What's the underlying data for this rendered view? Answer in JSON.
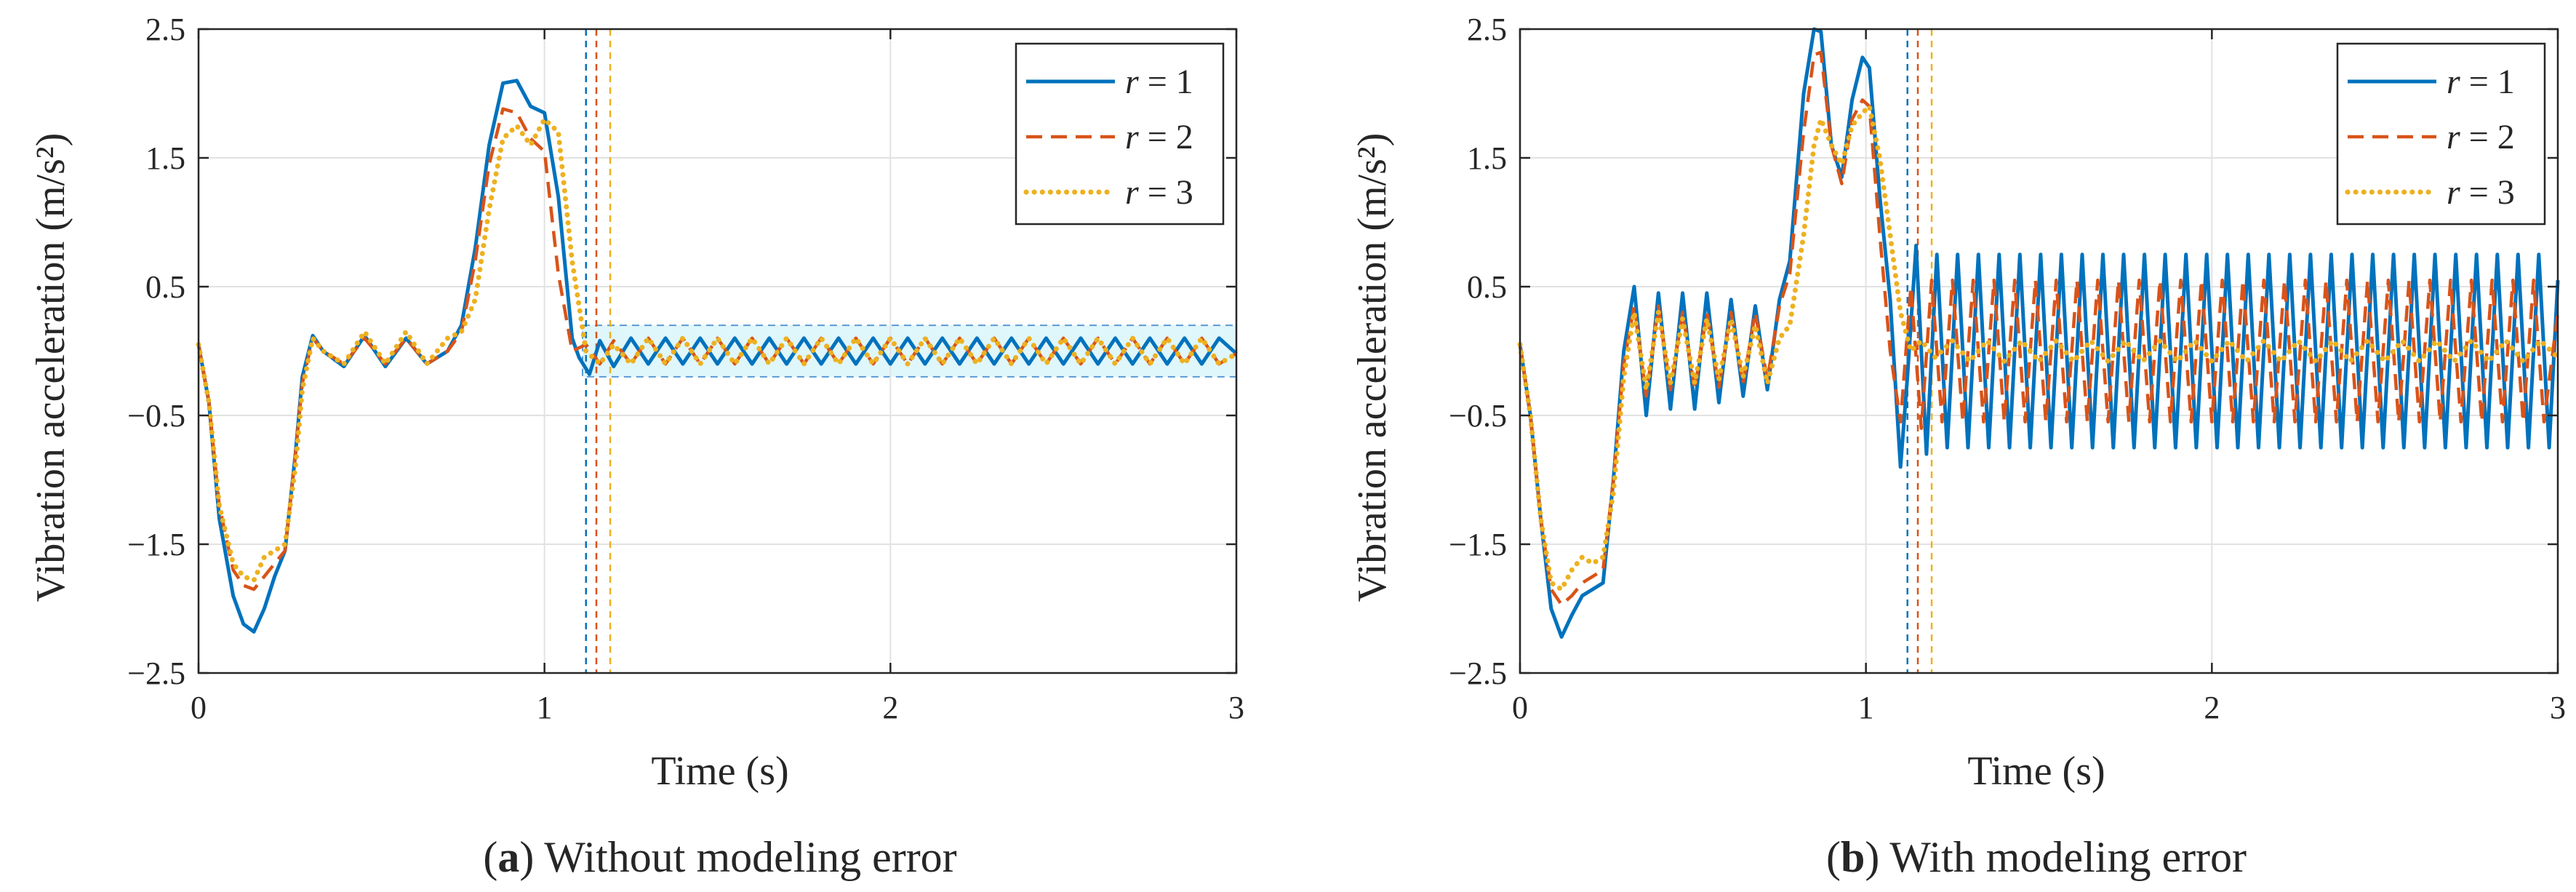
{
  "figure": {
    "colors": {
      "r1": "#0072BD",
      "r2": "#D95319",
      "r3": "#EDB120",
      "band_fill": "#dff6fb",
      "band_edge": "#5b9bd5",
      "grid": "#e2e2e2",
      "axis": "#262626"
    },
    "legend_labels": [
      "r = 1",
      "r = 2",
      "r = 3"
    ]
  },
  "chart_data": [
    {
      "type": "line",
      "panel": "a",
      "caption_letter": "a",
      "caption_text": " Without modeling error",
      "xlabel": "Time (s)",
      "ylabel": "Vibration acceleration (m/s²)",
      "xlim": [
        0,
        3
      ],
      "ylim": [
        -2.5,
        2.5
      ],
      "xticks": [
        "0",
        "1",
        "2",
        "3"
      ],
      "yticks": [
        "2.5",
        "1.5",
        "0.5",
        "−0.5",
        "−1.5",
        "−2.5"
      ],
      "grid": true,
      "legend": "top-right",
      "settling_band": {
        "x_start": 1.11,
        "x_end": 3.0,
        "y_low": -0.2,
        "y_high": 0.2
      },
      "settling_times": [
        1.12,
        1.15,
        1.19
      ],
      "series": [
        {
          "name": "r = 1",
          "color": "#0072BD",
          "dash": "solid",
          "x": [
            0,
            0.03,
            0.06,
            0.1,
            0.13,
            0.16,
            0.19,
            0.22,
            0.25,
            0.28,
            0.3,
            0.33,
            0.36,
            0.42,
            0.48,
            0.54,
            0.6,
            0.66,
            0.72,
            0.76,
            0.8,
            0.84,
            0.88,
            0.92,
            0.96,
            1.0,
            1.04,
            1.08,
            1.1,
            1.13,
            1.16,
            1.2,
            1.25,
            1.3,
            1.35,
            1.4,
            1.45,
            1.5,
            1.55,
            1.6,
            1.65,
            1.7,
            1.75,
            1.8,
            1.85,
            1.9,
            1.95,
            2.0,
            2.05,
            2.1,
            2.15,
            2.2,
            2.25,
            2.3,
            2.35,
            2.4,
            2.45,
            2.5,
            2.55,
            2.6,
            2.65,
            2.7,
            2.75,
            2.8,
            2.85,
            2.9,
            2.95,
            3.0
          ],
          "y": [
            0.05,
            -0.4,
            -1.3,
            -1.9,
            -2.12,
            -2.18,
            -2.0,
            -1.75,
            -1.55,
            -0.8,
            -0.2,
            0.12,
            0.0,
            -0.12,
            0.12,
            -0.12,
            0.1,
            -0.1,
            0.0,
            0.2,
            0.8,
            1.6,
            2.08,
            2.1,
            1.9,
            1.85,
            1.2,
            0.1,
            -0.05,
            -0.18,
            0.08,
            -0.12,
            0.1,
            -0.1,
            0.1,
            -0.1,
            0.1,
            -0.1,
            0.1,
            -0.1,
            0.1,
            -0.1,
            0.1,
            -0.1,
            0.1,
            -0.1,
            0.1,
            -0.1,
            0.1,
            -0.1,
            0.1,
            -0.1,
            0.1,
            -0.1,
            0.1,
            -0.1,
            0.1,
            -0.1,
            0.1,
            -0.1,
            0.1,
            -0.1,
            0.1,
            -0.1,
            0.1,
            -0.1,
            0.1,
            -0.02
          ]
        },
        {
          "name": "r = 2",
          "color": "#D95319",
          "dash": "dashed",
          "x": [
            0,
            0.03,
            0.06,
            0.1,
            0.13,
            0.16,
            0.19,
            0.22,
            0.25,
            0.28,
            0.3,
            0.33,
            0.36,
            0.42,
            0.48,
            0.54,
            0.6,
            0.66,
            0.72,
            0.76,
            0.8,
            0.84,
            0.88,
            0.92,
            0.96,
            1.0,
            1.04,
            1.08,
            1.12,
            1.16,
            1.2,
            1.25,
            1.3,
            1.35,
            1.4,
            1.45,
            1.5,
            1.55,
            1.6,
            1.65,
            1.7,
            1.75,
            1.8,
            1.85,
            1.9,
            1.95,
            2.0,
            2.05,
            2.1,
            2.15,
            2.2,
            2.25,
            2.3,
            2.35,
            2.4,
            2.45,
            2.5,
            2.55,
            2.6,
            2.65,
            2.7,
            2.75,
            2.8,
            2.85,
            2.9,
            2.95,
            3.0
          ],
          "y": [
            0.05,
            -0.4,
            -1.2,
            -1.7,
            -1.82,
            -1.85,
            -1.75,
            -1.65,
            -1.55,
            -0.8,
            -0.25,
            0.1,
            0.0,
            -0.1,
            0.1,
            -0.1,
            0.1,
            -0.1,
            0.0,
            0.15,
            0.7,
            1.45,
            1.88,
            1.85,
            1.65,
            1.55,
            0.6,
            0.0,
            0.05,
            -0.1,
            0.08,
            -0.1,
            0.1,
            -0.1,
            0.1,
            -0.1,
            0.1,
            -0.1,
            0.1,
            -0.1,
            0.1,
            -0.1,
            0.1,
            -0.1,
            0.1,
            -0.1,
            0.1,
            -0.1,
            0.1,
            -0.1,
            0.1,
            -0.1,
            0.1,
            -0.1,
            0.1,
            -0.1,
            0.1,
            -0.1,
            0.1,
            -0.1,
            0.1,
            -0.1,
            0.1,
            -0.1,
            0.1,
            -0.1,
            -0.02
          ]
        },
        {
          "name": "r = 3",
          "color": "#EDB120",
          "dash": "dotted",
          "x": [
            0,
            0.03,
            0.06,
            0.1,
            0.13,
            0.16,
            0.19,
            0.22,
            0.25,
            0.28,
            0.3,
            0.33,
            0.36,
            0.42,
            0.48,
            0.54,
            0.6,
            0.66,
            0.72,
            0.76,
            0.8,
            0.84,
            0.88,
            0.92,
            0.96,
            1.0,
            1.04,
            1.08,
            1.12,
            1.16,
            1.2,
            1.25,
            1.3,
            1.35,
            1.4,
            1.45,
            1.5,
            1.55,
            1.6,
            1.65,
            1.7,
            1.75,
            1.8,
            1.85,
            1.9,
            1.95,
            2.0,
            2.05,
            2.1,
            2.15,
            2.2,
            2.25,
            2.3,
            2.35,
            2.4,
            2.45,
            2.5,
            2.55,
            2.6,
            2.65,
            2.7,
            2.75,
            2.8,
            2.85,
            2.9,
            2.95,
            3.0
          ],
          "y": [
            0.05,
            -0.4,
            -1.2,
            -1.65,
            -1.75,
            -1.78,
            -1.6,
            -1.55,
            -1.5,
            -0.9,
            -0.3,
            0.1,
            0.0,
            -0.1,
            0.15,
            -0.1,
            0.15,
            -0.1,
            0.1,
            0.15,
            0.4,
            1.1,
            1.65,
            1.75,
            1.6,
            1.8,
            1.7,
            0.7,
            0.0,
            -0.1,
            0.05,
            -0.1,
            0.1,
            -0.1,
            0.1,
            -0.1,
            0.1,
            -0.1,
            0.1,
            -0.1,
            0.1,
            -0.1,
            0.1,
            -0.1,
            0.1,
            -0.1,
            0.1,
            -0.1,
            0.1,
            -0.1,
            0.1,
            -0.1,
            0.1,
            -0.1,
            0.1,
            -0.1,
            0.1,
            -0.1,
            0.1,
            -0.1,
            0.1,
            -0.1,
            0.1,
            -0.1,
            0.1,
            -0.1,
            -0.02
          ]
        }
      ]
    },
    {
      "type": "line",
      "panel": "b",
      "caption_letter": "b",
      "caption_text": " With modeling error",
      "xlabel": "Time (s)",
      "ylabel": "Vibration acceleration (m/s²)",
      "xlim": [
        0,
        3
      ],
      "ylim": [
        -2.5,
        2.5
      ],
      "xticks": [
        "0",
        "1",
        "2",
        "3"
      ],
      "yticks": [
        "2.5",
        "1.5",
        "0.5",
        "−0.5",
        "−1.5",
        "−2.5"
      ],
      "grid": true,
      "legend": "top-right",
      "settling_band": null,
      "settling_times": [
        1.12,
        1.15,
        1.19
      ],
      "series": [
        {
          "name": "r = 1",
          "color": "#0072BD",
          "dash": "solid",
          "x": [
            0,
            0.03,
            0.06,
            0.09,
            0.12,
            0.15,
            0.18,
            0.21,
            0.24,
            0.27,
            0.3,
            0.33,
            0.365,
            0.4,
            0.435,
            0.47,
            0.505,
            0.54,
            0.575,
            0.61,
            0.645,
            0.68,
            0.715,
            0.75,
            0.78,
            0.82,
            0.85,
            0.87,
            0.9,
            0.93,
            0.96,
            0.99,
            1.01,
            1.04,
            1.07,
            1.1,
            1.12,
            1.145,
            1.175,
            1.205,
            1.235,
            1.265,
            1.295,
            1.325,
            1.355,
            1.385,
            1.415,
            1.445,
            1.475,
            1.505,
            1.535,
            1.565,
            1.595,
            1.625,
            1.655,
            1.685,
            1.715,
            1.745,
            1.775,
            1.805,
            1.835,
            1.865,
            1.895,
            1.925,
            1.955,
            1.985,
            2.015,
            2.045,
            2.075,
            2.105,
            2.135,
            2.165,
            2.195,
            2.225,
            2.255,
            2.285,
            2.315,
            2.345,
            2.375,
            2.405,
            2.435,
            2.465,
            2.495,
            2.525,
            2.555,
            2.585,
            2.615,
            2.645,
            2.675,
            2.705,
            2.735,
            2.765,
            2.795,
            2.825,
            2.855,
            2.885,
            2.915,
            2.945,
            2.975,
            3.0
          ],
          "y": [
            0.05,
            -0.5,
            -1.3,
            -2.0,
            -2.22,
            -2.05,
            -1.9,
            -1.85,
            -1.8,
            -1.0,
            0.0,
            0.5,
            -0.5,
            0.45,
            -0.45,
            0.45,
            -0.45,
            0.45,
            -0.4,
            0.4,
            -0.35,
            0.35,
            -0.3,
            0.4,
            0.7,
            2.0,
            2.5,
            2.48,
            1.6,
            1.35,
            1.95,
            2.28,
            2.2,
            1.2,
            0.4,
            -0.9,
            -0.2,
            0.82,
            -0.8,
            0.75,
            -0.75,
            0.75,
            -0.75,
            0.75,
            -0.75,
            0.75,
            -0.75,
            0.75,
            -0.75,
            0.75,
            -0.75,
            0.75,
            -0.75,
            0.75,
            -0.75,
            0.75,
            -0.75,
            0.75,
            -0.75,
            0.75,
            -0.75,
            0.75,
            -0.75,
            0.75,
            -0.75,
            0.75,
            -0.75,
            0.75,
            -0.75,
            0.75,
            -0.75,
            0.75,
            -0.75,
            0.75,
            -0.75,
            0.75,
            -0.75,
            0.75,
            -0.75,
            0.75,
            -0.75,
            0.75,
            -0.75,
            0.75,
            -0.75,
            0.75,
            -0.75,
            0.75,
            -0.75,
            0.75,
            -0.75,
            0.75,
            -0.75,
            0.75,
            -0.75,
            0.75,
            -0.75,
            0.75,
            -0.75,
            0.55
          ]
        },
        {
          "name": "r = 2",
          "color": "#D95319",
          "dash": "dashed",
          "x": [
            0,
            0.03,
            0.06,
            0.09,
            0.12,
            0.15,
            0.18,
            0.21,
            0.24,
            0.27,
            0.3,
            0.33,
            0.365,
            0.4,
            0.435,
            0.47,
            0.505,
            0.54,
            0.575,
            0.61,
            0.645,
            0.68,
            0.715,
            0.75,
            0.78,
            0.82,
            0.85,
            0.87,
            0.9,
            0.93,
            0.96,
            0.99,
            1.01,
            1.04,
            1.07,
            1.1,
            1.13,
            1.16,
            1.19,
            1.22,
            1.25,
            1.28,
            1.31,
            1.34,
            1.37,
            1.4,
            1.43,
            1.46,
            1.49,
            1.52,
            1.55,
            1.58,
            1.61,
            1.64,
            1.67,
            1.7,
            1.73,
            1.76,
            1.79,
            1.82,
            1.85,
            1.88,
            1.91,
            1.94,
            1.97,
            2.0,
            2.03,
            2.06,
            2.09,
            2.12,
            2.15,
            2.18,
            2.21,
            2.24,
            2.27,
            2.3,
            2.33,
            2.36,
            2.39,
            2.42,
            2.45,
            2.48,
            2.51,
            2.54,
            2.57,
            2.6,
            2.63,
            2.66,
            2.69,
            2.72,
            2.75,
            2.78,
            2.81,
            2.84,
            2.87,
            2.9,
            2.93,
            2.96,
            3.0
          ],
          "y": [
            0.05,
            -0.5,
            -1.3,
            -1.85,
            -1.97,
            -1.9,
            -1.8,
            -1.75,
            -1.7,
            -1.0,
            -0.1,
            0.35,
            -0.35,
            0.35,
            -0.3,
            0.3,
            -0.3,
            0.3,
            -0.28,
            0.3,
            -0.25,
            0.3,
            -0.22,
            0.35,
            0.6,
            1.7,
            2.3,
            2.32,
            1.6,
            1.3,
            1.8,
            1.95,
            1.9,
            0.9,
            0.0,
            -0.55,
            0.5,
            -0.6,
            0.55,
            -0.55,
            0.55,
            -0.55,
            0.55,
            -0.55,
            0.55,
            -0.55,
            0.55,
            -0.55,
            0.55,
            -0.55,
            0.55,
            -0.55,
            0.55,
            -0.55,
            0.55,
            -0.55,
            0.55,
            -0.55,
            0.55,
            -0.55,
            0.55,
            -0.55,
            0.55,
            -0.55,
            0.55,
            -0.55,
            0.55,
            -0.55,
            0.55,
            -0.55,
            0.55,
            -0.55,
            0.55,
            -0.55,
            0.55,
            -0.55,
            0.55,
            -0.55,
            0.55,
            -0.55,
            0.55,
            -0.55,
            0.55,
            -0.55,
            0.55,
            -0.55,
            0.55,
            -0.55,
            0.55,
            -0.55,
            0.55,
            -0.55,
            0.55,
            -0.55,
            0.55,
            -0.55,
            0.55,
            -0.55,
            0.3
          ]
        },
        {
          "name": "r = 3",
          "color": "#EDB120",
          "dash": "dotted",
          "x": [
            0,
            0.03,
            0.06,
            0.09,
            0.12,
            0.15,
            0.18,
            0.21,
            0.24,
            0.27,
            0.3,
            0.33,
            0.365,
            0.4,
            0.435,
            0.47,
            0.505,
            0.54,
            0.575,
            0.61,
            0.645,
            0.68,
            0.715,
            0.75,
            0.78,
            0.82,
            0.85,
            0.87,
            0.9,
            0.93,
            0.96,
            0.99,
            1.01,
            1.04,
            1.07,
            1.1,
            1.13,
            1.16,
            1.2,
            1.25,
            1.3,
            1.35,
            1.4,
            1.45,
            1.5,
            1.55,
            1.6,
            1.65,
            1.7,
            1.75,
            1.8,
            1.85,
            1.9,
            1.95,
            2.0,
            2.05,
            2.1,
            2.15,
            2.2,
            2.25,
            2.3,
            2.35,
            2.4,
            2.45,
            2.5,
            2.55,
            2.6,
            2.65,
            2.7,
            2.75,
            2.8,
            2.85,
            2.9,
            2.95,
            3.0
          ],
          "y": [
            0.05,
            -0.5,
            -1.3,
            -1.8,
            -1.85,
            -1.7,
            -1.6,
            -1.65,
            -1.6,
            -1.1,
            -0.2,
            0.3,
            -0.3,
            0.3,
            -0.25,
            0.25,
            -0.25,
            0.25,
            -0.22,
            0.25,
            -0.2,
            0.2,
            -0.25,
            0.1,
            0.2,
            0.9,
            1.6,
            1.8,
            1.6,
            1.45,
            1.75,
            1.85,
            1.9,
            1.5,
            0.9,
            0.3,
            0.0,
            0.08,
            -0.05,
            0.08,
            -0.08,
            0.08,
            -0.08,
            0.08,
            -0.08,
            0.08,
            -0.08,
            0.08,
            -0.08,
            0.08,
            -0.08,
            0.08,
            -0.08,
            0.08,
            -0.08,
            0.08,
            -0.08,
            0.08,
            -0.08,
            0.08,
            -0.08,
            0.08,
            -0.08,
            0.08,
            -0.08,
            0.08,
            -0.08,
            0.08,
            -0.08,
            0.08,
            -0.08,
            0.08,
            -0.08,
            0.08,
            -0.05
          ]
        }
      ]
    }
  ]
}
